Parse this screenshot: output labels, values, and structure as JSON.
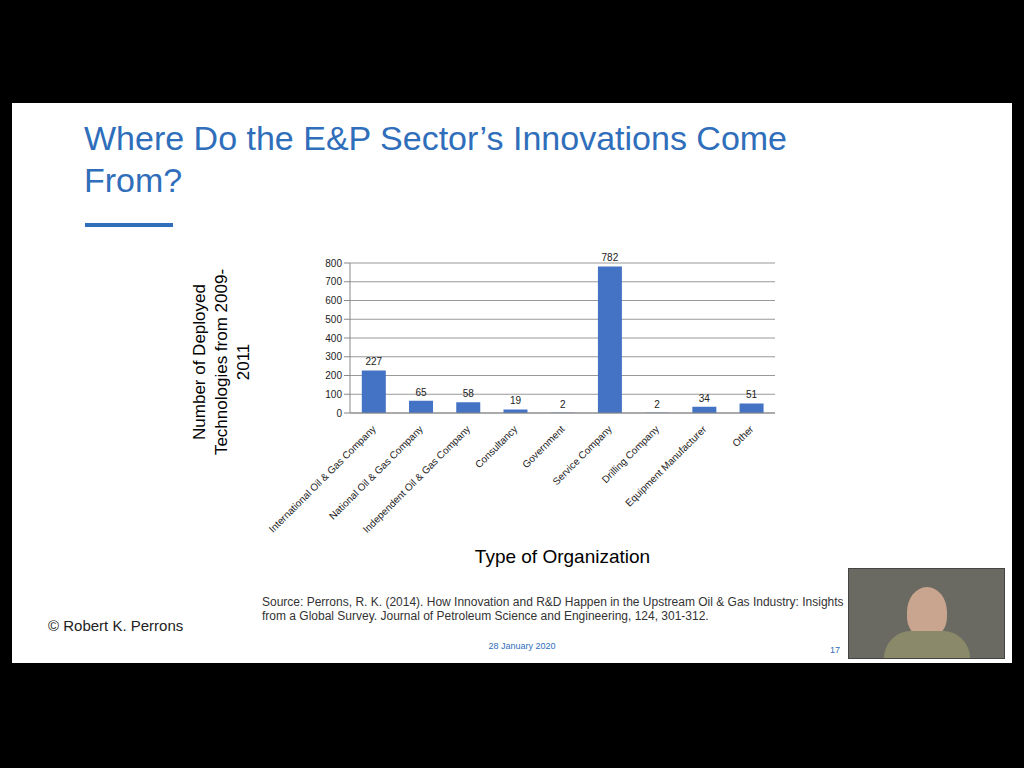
{
  "chart_data": {
    "type": "bar",
    "title": "Where Do the E&P Sector’s Innovations Come From?",
    "xlabel": "Type of Organization",
    "ylabel": "Number of Deployed Technologies from 2009-2011",
    "categories": [
      "International Oil & Gas Company",
      "National Oil & Gas Company",
      "Independent Oil & Gas Company",
      "Consultancy",
      "Government",
      "Service Company",
      "Drilling Company",
      "Equipment Manufacturer",
      "Other"
    ],
    "values": [
      227,
      65,
      58,
      19,
      2,
      782,
      2,
      34,
      51
    ],
    "color": "#4472c4",
    "ylim": [
      0,
      800
    ],
    "yticks": [
      0,
      100,
      200,
      300,
      400,
      500,
      600,
      700,
      800
    ],
    "grid": true,
    "data_labels": true,
    "annotations": [
      "© Robert K. Perrons",
      "Source: Perrons, R. K. (2014). How Innovation and R&D Happen in the Upstream Oil & Gas Industry: Insights from a Global Survey. Journal of Petroleum Science and Engineering, 124, 301-312.",
      "28 January 2020",
      "17"
    ]
  }
}
